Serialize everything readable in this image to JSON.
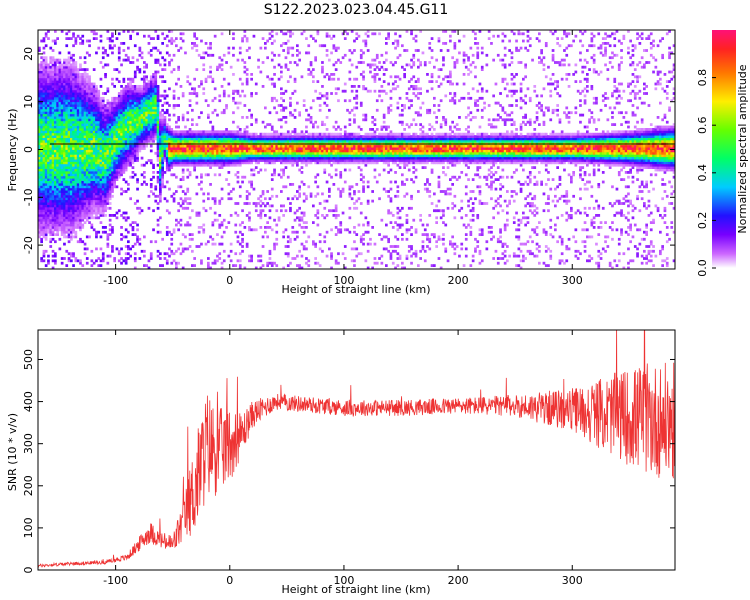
{
  "title": "S122.2023.023.04.45.G11",
  "charts": [
    {
      "type": "heatmap",
      "xlabel": "Height of straight line (km)",
      "ylabel": "Frequency (Hz)",
      "xlim": [
        -168,
        390
      ],
      "ylim": [
        -25,
        25
      ],
      "x_ticks": [
        -100,
        0,
        100,
        200,
        300
      ],
      "y_ticks": [
        20,
        10,
        0,
        -10,
        -20
      ],
      "ridge": {
        "x": [
          -168,
          -140,
          -120,
          -110,
          -100,
          -90,
          -80,
          -70,
          -65,
          -62,
          -58,
          -55,
          -50,
          -40,
          -30,
          0,
          20,
          40,
          60,
          100,
          150,
          200,
          250,
          300,
          350,
          390
        ],
        "y": [
          0,
          0,
          0,
          -2,
          2,
          5,
          6,
          8,
          9,
          -2,
          2,
          0,
          0,
          0,
          0,
          0,
          0,
          0,
          0,
          0,
          0,
          0,
          0,
          0,
          0,
          0
        ],
        "spread": [
          8,
          8,
          6,
          5,
          4,
          4,
          3,
          3,
          3,
          4,
          2,
          2,
          1.5,
          1.5,
          1.5,
          1.5,
          1.2,
          1.2,
          1.2,
          1.2,
          1.2,
          1.2,
          1.2,
          1.2,
          1.5,
          2
        ]
      }
    },
    {
      "type": "line",
      "xlabel": "Height of straight line (km)",
      "ylabel": "SNR (10 * v/v)",
      "xlim": [
        -168,
        390
      ],
      "ylim": [
        0,
        570
      ],
      "x_ticks": [
        -100,
        0,
        100,
        200,
        300
      ],
      "y_ticks": [
        0,
        100,
        200,
        300,
        400,
        500
      ],
      "series": [
        {
          "color": "#ee3333",
          "envelope_x": [
            -168,
            -140,
            -110,
            -90,
            -70,
            -60,
            -50,
            -40,
            -30,
            -20,
            -10,
            0,
            10,
            20,
            40,
            60,
            80,
            100,
            150,
            200,
            250,
            300,
            330,
            360,
            390
          ],
          "envelope_y": [
            10,
            15,
            18,
            30,
            90,
            70,
            60,
            120,
            200,
            300,
            280,
            300,
            320,
            370,
            400,
            395,
            390,
            385,
            385,
            390,
            390,
            380,
            370,
            360,
            350
          ],
          "noise": [
            3,
            3,
            3,
            6,
            20,
            15,
            20,
            40,
            90,
            100,
            80,
            70,
            40,
            25,
            15,
            15,
            15,
            15,
            15,
            15,
            20,
            40,
            70,
            100,
            110
          ]
        }
      ]
    }
  ],
  "colorbar": {
    "label": "Normalized spectral amplitude",
    "ticks": [
      "0.0",
      "0.2",
      "0.4",
      "0.6",
      "0.8"
    ],
    "tick_values": [
      0.0,
      0.2,
      0.4,
      0.6,
      0.8
    ],
    "range": [
      0,
      1
    ]
  }
}
